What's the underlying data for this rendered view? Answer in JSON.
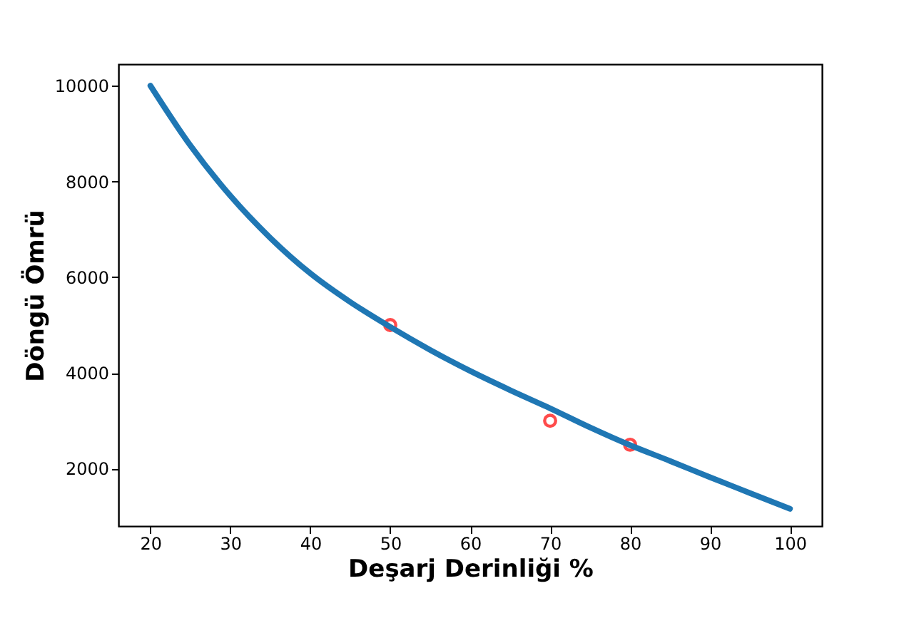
{
  "chart_data": {
    "type": "line",
    "xlabel": "Deşarj Derinliği %",
    "ylabel": "Döngü Ömrü",
    "series": [
      {
        "color": "#1f77b4",
        "x": [
          20,
          25,
          30,
          35,
          40,
          45,
          50,
          55,
          60,
          65,
          70,
          75,
          80,
          85,
          90,
          95,
          100
        ],
        "values": [
          10000,
          8750,
          7700,
          6820,
          6080,
          5480,
          4960,
          4480,
          4040,
          3640,
          3260,
          2860,
          2490,
          2160,
          1820,
          1490,
          1160
        ]
      },
      {
        "type": "scatter",
        "color": "#ff0000",
        "marker": "circle",
        "x": [
          50,
          70,
          80
        ],
        "values": [
          5000,
          3000,
          2500
        ]
      }
    ],
    "xlim": [
      16,
      104
    ],
    "xticks": [
      20,
      30,
      40,
      50,
      60,
      70,
      80,
      90,
      100
    ],
    "ylim": [
      800,
      10450
    ],
    "yticks": [
      2000,
      4000,
      6000,
      8000,
      10000
    ],
    "grid": false
  }
}
